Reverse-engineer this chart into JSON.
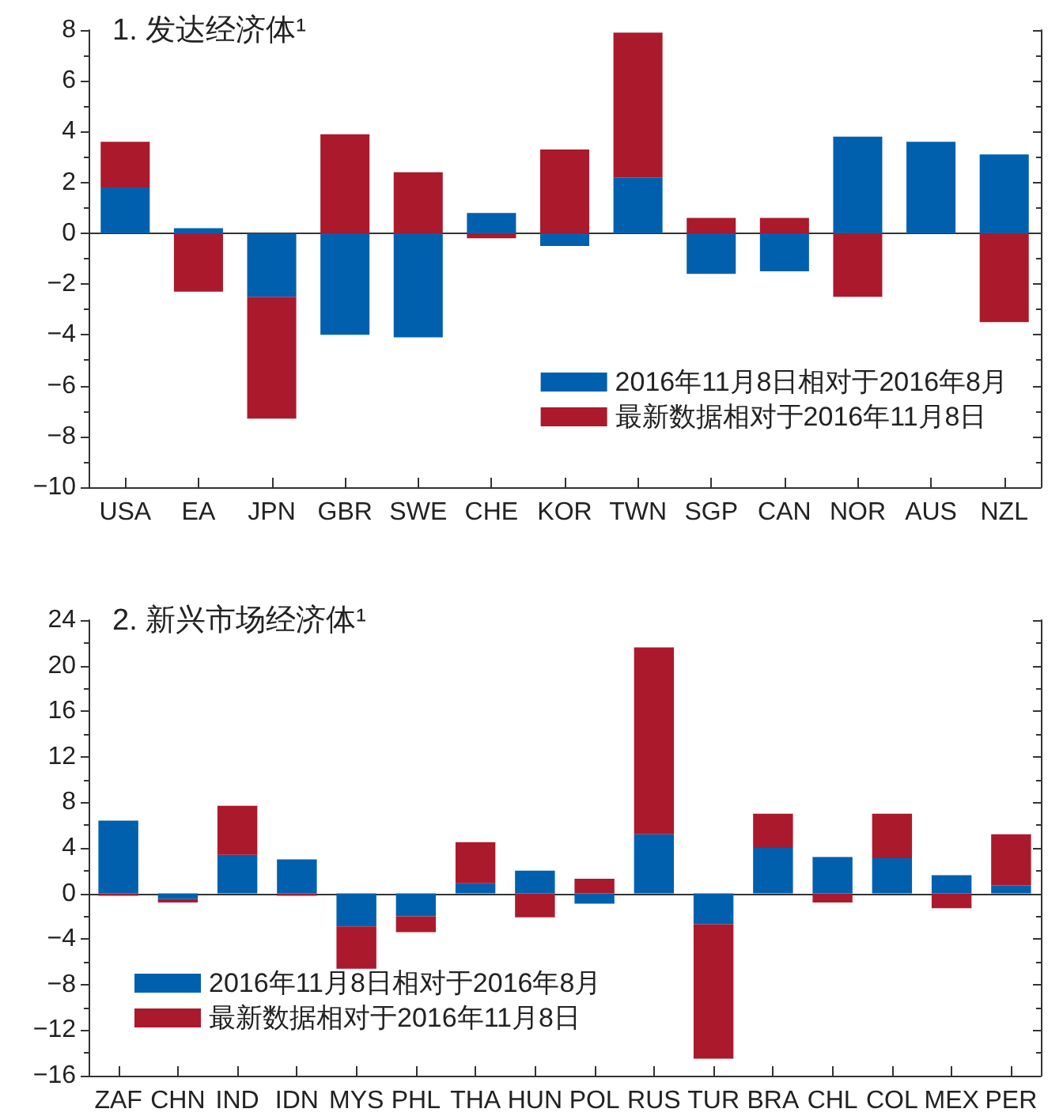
{
  "chart_data": [
    {
      "type": "bar",
      "title": "1. 发达经济体¹",
      "stacked": true,
      "legend": "bottom right",
      "categories": [
        "USA",
        "EA",
        "JPN",
        "GBR",
        "SWE",
        "CHE",
        "KOR",
        "TWN",
        "SGP",
        "CAN",
        "NOR",
        "AUS",
        "NZL"
      ],
      "series": [
        {
          "name": "2016年11月8日相对于2016年8月",
          "color": "#0060ae",
          "values": [
            1.8,
            0.2,
            -2.5,
            -4.0,
            -4.1,
            0.8,
            -0.5,
            2.2,
            -1.6,
            -1.5,
            3.8,
            3.6,
            3.1
          ]
        },
        {
          "name": "最新数据相对于2016年11月8日",
          "color": "#ab192d",
          "values": [
            1.8,
            -2.3,
            -4.8,
            3.9,
            2.4,
            -0.2,
            3.3,
            5.7,
            0.6,
            0.6,
            -2.5,
            null,
            -3.5
          ]
        }
      ],
      "ylim": [
        -10,
        8
      ],
      "yticks": [
        -10,
        -8,
        -6,
        -4,
        -2,
        0,
        2,
        4,
        6,
        8
      ]
    },
    {
      "type": "bar",
      "title": "2. 新兴市场经济体¹",
      "stacked": true,
      "legend": "bottom left",
      "categories": [
        "ZAF",
        "CHN",
        "IND",
        "IDN",
        "MYS",
        "PHL",
        "THA",
        "HUN",
        "POL",
        "RUS",
        "TUR",
        "BRA",
        "CHL",
        "COL",
        "MEX",
        "PER"
      ],
      "series": [
        {
          "name": "2016年11月8日相对于2016年8月",
          "color": "#0060ae",
          "values": [
            6.4,
            -0.5,
            3.4,
            3.0,
            -2.9,
            -2.0,
            0.9,
            2.0,
            -0.9,
            5.2,
            -2.7,
            4.0,
            3.2,
            3.1,
            1.6,
            0.7
          ]
        },
        {
          "name": "最新数据相对于2016年11月8日",
          "color": "#ab192d",
          "values": [
            -0.2,
            -0.3,
            4.3,
            -0.2,
            -3.7,
            -1.4,
            3.6,
            -2.1,
            1.3,
            16.4,
            -11.8,
            3.0,
            -0.8,
            3.9,
            -1.3,
            4.5
          ]
        }
      ],
      "ylim": [
        -16,
        24
      ],
      "yticks": [
        -16,
        -12,
        -8,
        -4,
        0,
        4,
        8,
        12,
        16,
        20,
        24
      ]
    }
  ]
}
